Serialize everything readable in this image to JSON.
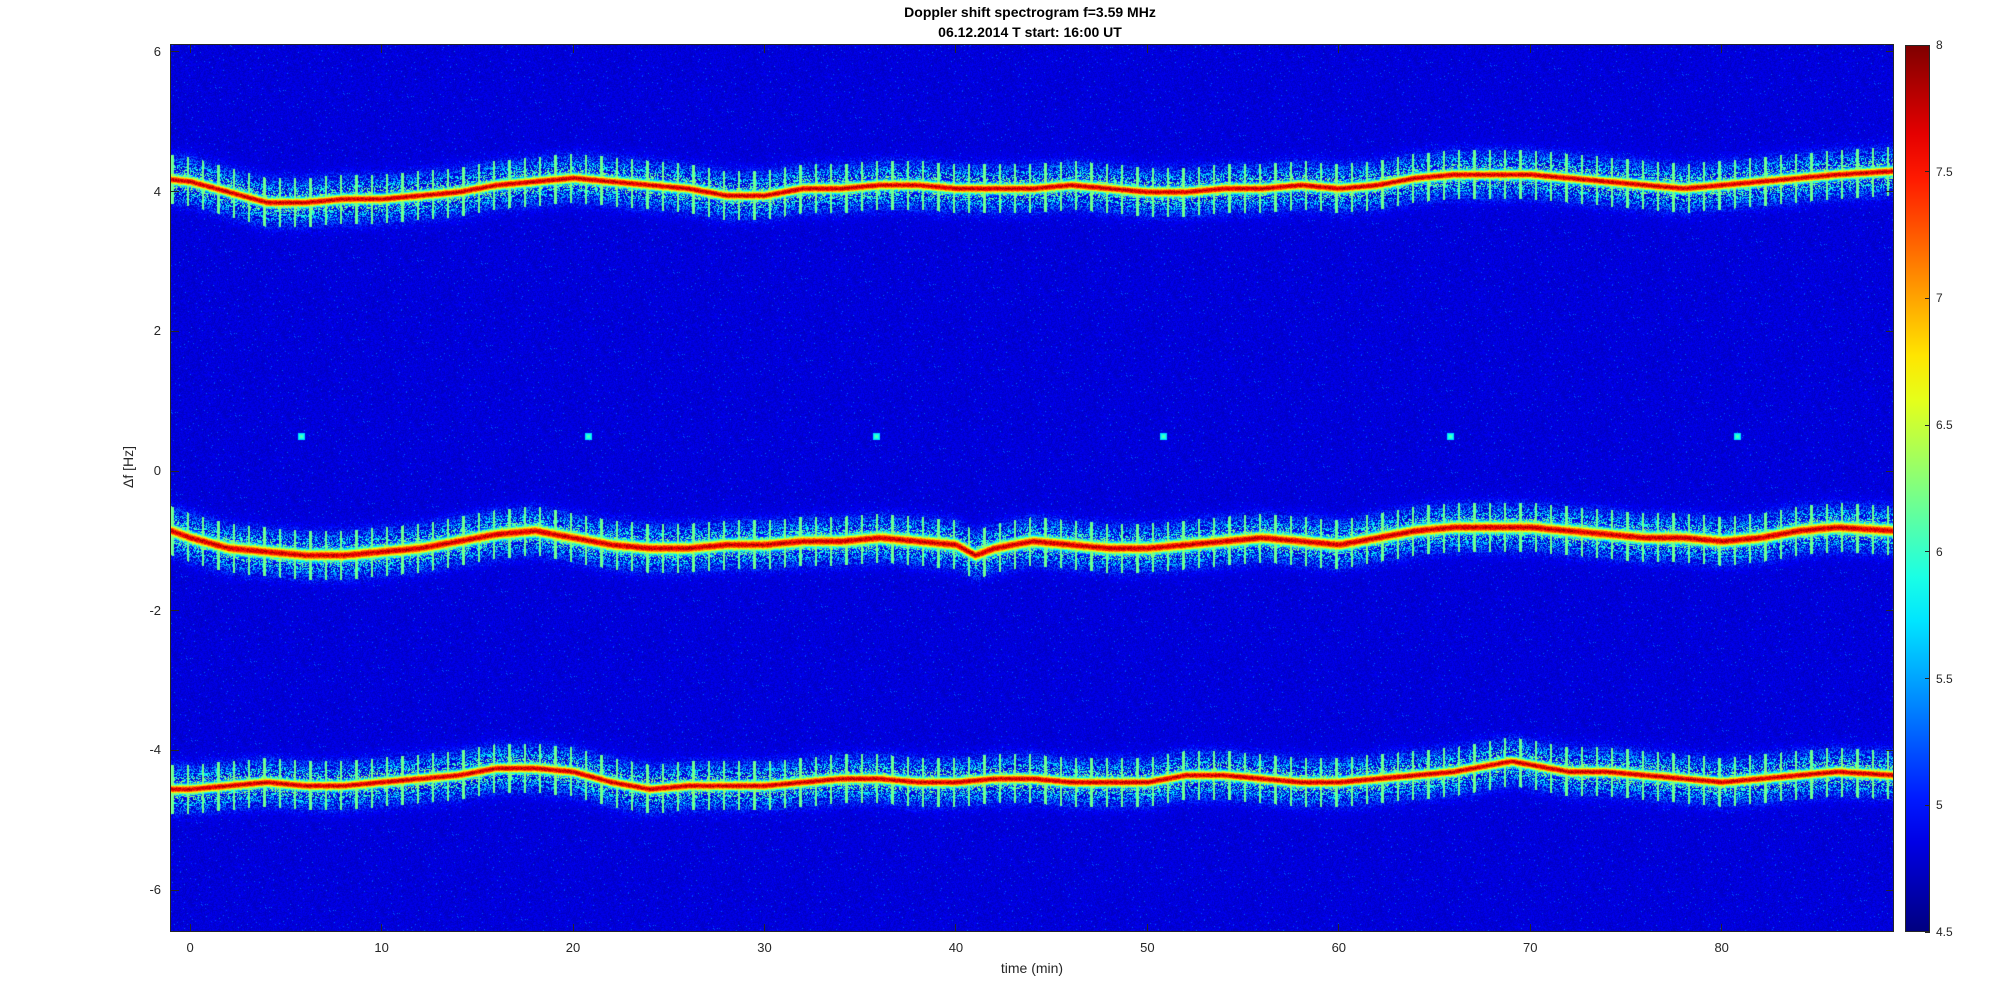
{
  "chart_data": {
    "type": "heatmap",
    "title": "Doppler shift spectrogram f=3.59 MHz",
    "subtitle": "06.12.2014   T start: 16:00 UT",
    "xlabel": "time (min)",
    "ylabel": "Δf [Hz]",
    "xlim": [
      -1,
      89
    ],
    "ylim": [
      -6.6,
      6.1
    ],
    "xticks": [
      0,
      10,
      20,
      30,
      40,
      50,
      60,
      70,
      80
    ],
    "xtick_labels": [
      "0",
      "10",
      "20",
      "30",
      "40",
      "50",
      "60",
      "70",
      "80"
    ],
    "yticks": [
      6,
      4,
      2,
      0,
      -2,
      -4,
      -6
    ],
    "ytick_labels": [
      "6",
      "4",
      "2",
      "0",
      "-2",
      "-4",
      "-6"
    ],
    "colormap": "jet",
    "clim": [
      4.5,
      8
    ],
    "colorbar_ticks": [
      8,
      7.5,
      7,
      6.5,
      6,
      5.5,
      5,
      4.5
    ],
    "colorbar_tick_labels": [
      "8",
      "7.5",
      "7",
      "6.5",
      "6",
      "5.5",
      "5",
      "4.5"
    ],
    "traces": [
      {
        "t": [
          -1,
          0,
          2,
          4,
          6,
          8,
          10,
          12,
          14,
          16,
          18,
          20,
          22,
          24,
          26,
          28,
          30,
          32,
          34,
          36,
          38,
          40,
          42,
          44,
          46,
          48,
          50,
          52,
          54,
          56,
          58,
          60,
          62,
          64,
          66,
          68,
          70,
          72,
          74,
          76,
          78,
          80,
          82,
          84,
          86,
          89
        ],
        "df": [
          4.18,
          4.15,
          4.0,
          3.85,
          3.85,
          3.9,
          3.9,
          3.95,
          4.0,
          4.1,
          4.15,
          4.2,
          4.15,
          4.1,
          4.05,
          3.95,
          3.95,
          4.05,
          4.05,
          4.1,
          4.1,
          4.05,
          4.05,
          4.05,
          4.1,
          4.05,
          4.0,
          4.0,
          4.05,
          4.05,
          4.1,
          4.05,
          4.1,
          4.2,
          4.25,
          4.25,
          4.25,
          4.2,
          4.15,
          4.1,
          4.05,
          4.1,
          4.15,
          4.2,
          4.25,
          4.3
        ]
      },
      {
        "t": [
          -1,
          0,
          2,
          4,
          6,
          8,
          10,
          12,
          14,
          16,
          18,
          20,
          22,
          24,
          26,
          28,
          30,
          32,
          34,
          36,
          38,
          40,
          41,
          42,
          44,
          46,
          48,
          50,
          52,
          54,
          56,
          58,
          60,
          62,
          64,
          66,
          68,
          70,
          72,
          74,
          76,
          78,
          80,
          82,
          84,
          86,
          89
        ],
        "df": [
          -0.85,
          -0.95,
          -1.1,
          -1.15,
          -1.2,
          -1.2,
          -1.15,
          -1.1,
          -1.0,
          -0.9,
          -0.85,
          -0.95,
          -1.05,
          -1.1,
          -1.1,
          -1.05,
          -1.05,
          -1.0,
          -1.0,
          -0.95,
          -1.0,
          -1.05,
          -1.2,
          -1.1,
          -1.0,
          -1.05,
          -1.1,
          -1.1,
          -1.05,
          -1.0,
          -0.95,
          -1.0,
          -1.05,
          -0.95,
          -0.85,
          -0.8,
          -0.8,
          -0.8,
          -0.85,
          -0.9,
          -0.95,
          -0.95,
          -1.0,
          -0.95,
          -0.85,
          -0.8,
          -0.85
        ]
      },
      {
        "t": [
          -1,
          0,
          2,
          4,
          6,
          8,
          10,
          12,
          14,
          16,
          18,
          20,
          22,
          24,
          26,
          28,
          30,
          32,
          34,
          36,
          38,
          40,
          42,
          44,
          46,
          48,
          50,
          52,
          54,
          56,
          58,
          60,
          62,
          64,
          66,
          68,
          69,
          70,
          72,
          74,
          76,
          78,
          80,
          82,
          84,
          86,
          89
        ],
        "df": [
          -4.55,
          -4.55,
          -4.5,
          -4.45,
          -4.5,
          -4.5,
          -4.45,
          -4.4,
          -4.35,
          -4.25,
          -4.25,
          -4.3,
          -4.45,
          -4.55,
          -4.5,
          -4.5,
          -4.5,
          -4.45,
          -4.4,
          -4.4,
          -4.45,
          -4.45,
          -4.4,
          -4.4,
          -4.45,
          -4.45,
          -4.45,
          -4.35,
          -4.35,
          -4.4,
          -4.45,
          -4.45,
          -4.4,
          -4.35,
          -4.3,
          -4.2,
          -4.15,
          -4.2,
          -4.3,
          -4.3,
          -4.35,
          -4.4,
          -4.45,
          -4.4,
          -4.35,
          -4.3,
          -4.35
        ]
      }
    ],
    "markers": [
      {
        "t": 5.8,
        "df": 0.5
      },
      {
        "t": 20.8,
        "df": 0.5
      },
      {
        "t": 35.8,
        "df": 0.5
      },
      {
        "t": 50.8,
        "df": 0.5
      },
      {
        "t": 65.8,
        "df": 0.5
      },
      {
        "t": 80.8,
        "df": 0.5
      }
    ]
  }
}
